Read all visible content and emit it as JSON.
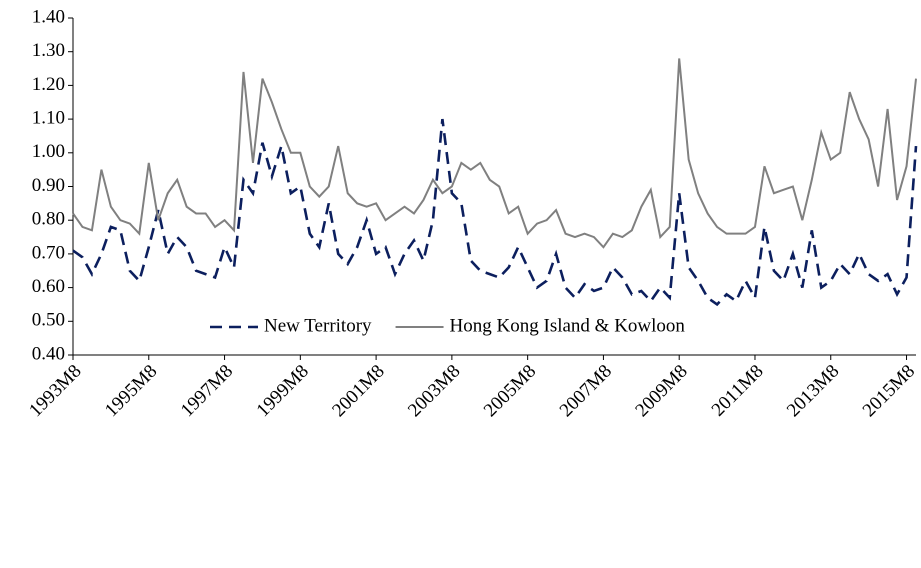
{
  "chart_data": {
    "type": "line",
    "categories": [
      "1993M8",
      null,
      null,
      null,
      null,
      null,
      null,
      null,
      "1995M8",
      null,
      null,
      null,
      null,
      null,
      null,
      null,
      "1997M8",
      null,
      null,
      null,
      null,
      null,
      null,
      null,
      "1999M8",
      null,
      null,
      null,
      null,
      null,
      null,
      null,
      "2001M8",
      null,
      null,
      null,
      null,
      null,
      null,
      null,
      "2003M8",
      null,
      null,
      null,
      null,
      null,
      null,
      null,
      "2005M8",
      null,
      null,
      null,
      null,
      null,
      null,
      null,
      "2007M8",
      null,
      null,
      null,
      null,
      null,
      null,
      null,
      "2009M8",
      null,
      null,
      null,
      null,
      null,
      null,
      null,
      "2011M8",
      null,
      null,
      null,
      null,
      null,
      null,
      null,
      "2013M8",
      null,
      null,
      null,
      null,
      null,
      null,
      null,
      "2015M8",
      null
    ],
    "series": [
      {
        "name": "New Territory",
        "color": "#0c1f5e",
        "dashed": true,
        "values": [
          0.71,
          0.69,
          0.64,
          0.7,
          0.78,
          0.77,
          0.65,
          0.62,
          0.72,
          0.83,
          0.7,
          0.75,
          0.72,
          0.65,
          0.64,
          0.63,
          0.72,
          0.66,
          0.92,
          0.88,
          1.03,
          0.93,
          1.02,
          0.88,
          0.9,
          0.76,
          0.72,
          0.85,
          0.7,
          0.67,
          0.72,
          0.8,
          0.7,
          0.72,
          0.64,
          0.7,
          0.74,
          0.68,
          0.8,
          1.1,
          0.88,
          0.85,
          0.68,
          0.65,
          0.64,
          0.63,
          0.66,
          0.72,
          0.66,
          0.6,
          0.62,
          0.7,
          0.6,
          0.57,
          0.61,
          0.59,
          0.6,
          0.66,
          0.63,
          0.58,
          0.59,
          0.56,
          0.6,
          0.57,
          0.88,
          0.66,
          0.62,
          0.57,
          0.55,
          0.58,
          0.56,
          0.62,
          0.57,
          0.78,
          0.65,
          0.62,
          0.7,
          0.6,
          0.77,
          0.6,
          0.62,
          0.67,
          0.64,
          0.7,
          0.64,
          0.62,
          0.64,
          0.58,
          0.63,
          1.02
        ]
      },
      {
        "name": "Hong Kong Island & Kowloon",
        "color": "#808080",
        "dashed": false,
        "values": [
          0.82,
          0.78,
          0.77,
          0.95,
          0.84,
          0.8,
          0.79,
          0.76,
          0.97,
          0.8,
          0.88,
          0.92,
          0.84,
          0.82,
          0.82,
          0.78,
          0.8,
          0.77,
          1.24,
          0.97,
          1.22,
          1.15,
          1.07,
          1.0,
          1.0,
          0.9,
          0.87,
          0.9,
          1.02,
          0.88,
          0.85,
          0.84,
          0.85,
          0.8,
          0.82,
          0.84,
          0.82,
          0.86,
          0.92,
          0.88,
          0.9,
          0.97,
          0.95,
          0.97,
          0.92,
          0.9,
          0.82,
          0.84,
          0.76,
          0.79,
          0.8,
          0.83,
          0.76,
          0.75,
          0.76,
          0.75,
          0.72,
          0.76,
          0.75,
          0.77,
          0.84,
          0.89,
          0.75,
          0.78,
          1.28,
          0.98,
          0.88,
          0.82,
          0.78,
          0.76,
          0.76,
          0.76,
          0.78,
          0.96,
          0.88,
          0.89,
          0.9,
          0.8,
          0.92,
          1.06,
          0.98,
          1.0,
          1.18,
          1.1,
          1.04,
          0.9,
          1.13,
          0.86,
          0.96,
          1.22
        ]
      }
    ],
    "ylim": [
      0.4,
      1.4
    ],
    "yticks": [
      {
        "value": 0.4,
        "label": "0.40"
      },
      {
        "value": 0.5,
        "label": "0.50"
      },
      {
        "value": 0.6,
        "label": "0.60"
      },
      {
        "value": 0.7,
        "label": "0.70"
      },
      {
        "value": 0.8,
        "label": "0.80"
      },
      {
        "value": 0.9,
        "label": "0.90"
      },
      {
        "value": 1.0,
        "label": "1.00"
      },
      {
        "value": 1.1,
        "label": "1.10"
      },
      {
        "value": 1.2,
        "label": "1.20"
      },
      {
        "value": 1.3,
        "label": "1.30"
      },
      {
        "value": 1.4,
        "label": "1.40"
      }
    ],
    "legend": "bottom-center"
  }
}
